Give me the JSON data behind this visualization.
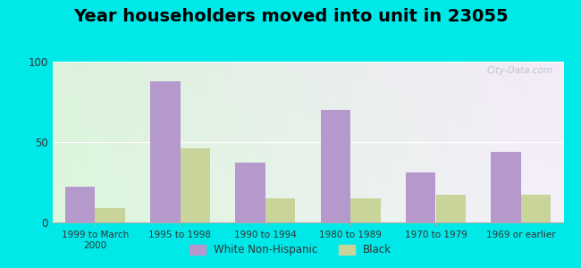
{
  "title": "Year householders moved into unit in 23055",
  "categories": [
    "1999 to March\n2000",
    "1995 to 1998",
    "1990 to 1994",
    "1980 to 1989",
    "1970 to 1979",
    "1969 or earlier"
  ],
  "white_non_hispanic": [
    22,
    88,
    37,
    70,
    31,
    44
  ],
  "black": [
    9,
    46,
    15,
    15,
    17,
    17
  ],
  "white_color": "#b599cc",
  "black_color": "#c8d49a",
  "background_outer": "#00e8e8",
  "ylim": [
    0,
    100
  ],
  "yticks": [
    0,
    50,
    100
  ],
  "title_fontsize": 14,
  "legend_labels": [
    "White Non-Hispanic",
    "Black"
  ],
  "watermark": "City-Data.com",
  "bar_width": 0.35,
  "grid_color": "#cccccc",
  "spine_color": "#aaaaaa"
}
